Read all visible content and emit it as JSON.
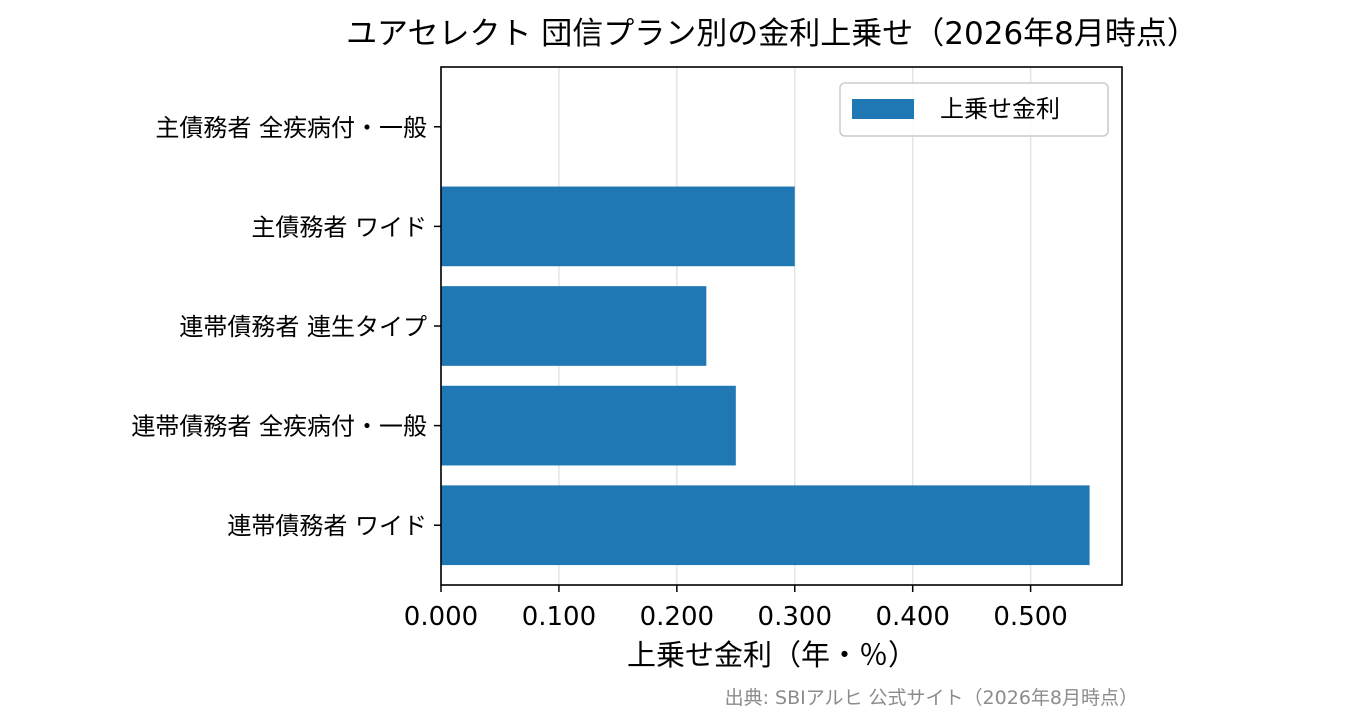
{
  "chart_data": {
    "type": "bar",
    "orientation": "horizontal",
    "title": "ユアセレクト 団信プラン別の金利上乗せ（2026年8月時点）",
    "xlabel": "上乗せ金利（年・％）",
    "ylabel": "",
    "categories": [
      "主債務者 全疾病付・一般",
      "主債務者 ワイド",
      "連帯債務者 連生タイプ",
      "連帯債務者 全疾病付・一般",
      "連帯債務者 ワイド"
    ],
    "series": [
      {
        "name": "上乗せ金利",
        "values": [
          0.0,
          0.3,
          0.225,
          0.25,
          0.55
        ],
        "color": "#1f77b4"
      }
    ],
    "xlim": [
      0,
      0.5775
    ],
    "xticks": [
      0.0,
      0.1,
      0.2,
      0.3,
      0.4,
      0.5
    ],
    "xtick_labels": [
      "0.000",
      "0.100",
      "0.200",
      "0.300",
      "0.400",
      "0.500"
    ],
    "grid": "x-axis vertical lines",
    "legend_position": "top-right",
    "source": "出典: SBIアルヒ 公式サイト（2026年8月時点）"
  }
}
